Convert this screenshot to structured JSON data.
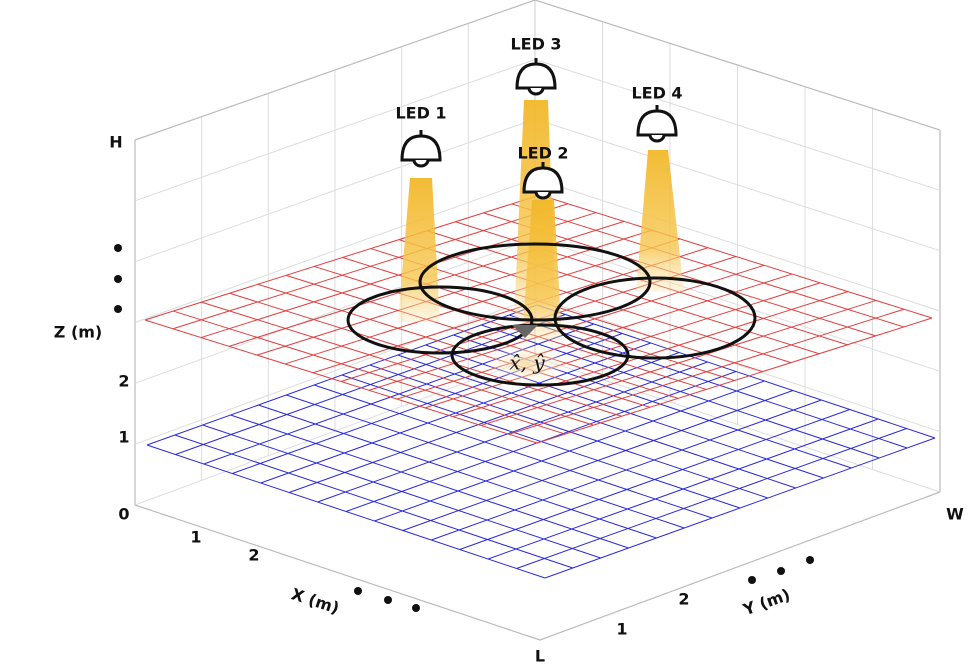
{
  "leds": [
    {
      "label": "LED 1"
    },
    {
      "label": "LED 2"
    },
    {
      "label": "LED 3"
    },
    {
      "label": "LED 4"
    }
  ],
  "estimate_label": "x̂, ŷ",
  "axes": {
    "z": {
      "label": "Z (m)",
      "ticks": [
        "0",
        "1",
        "2",
        "H"
      ]
    },
    "x": {
      "label": "X (m)",
      "ticks": [
        "1",
        "2",
        "L"
      ]
    },
    "y": {
      "label": "Y (m)",
      "ticks": [
        "1",
        "2",
        "W"
      ]
    }
  }
}
